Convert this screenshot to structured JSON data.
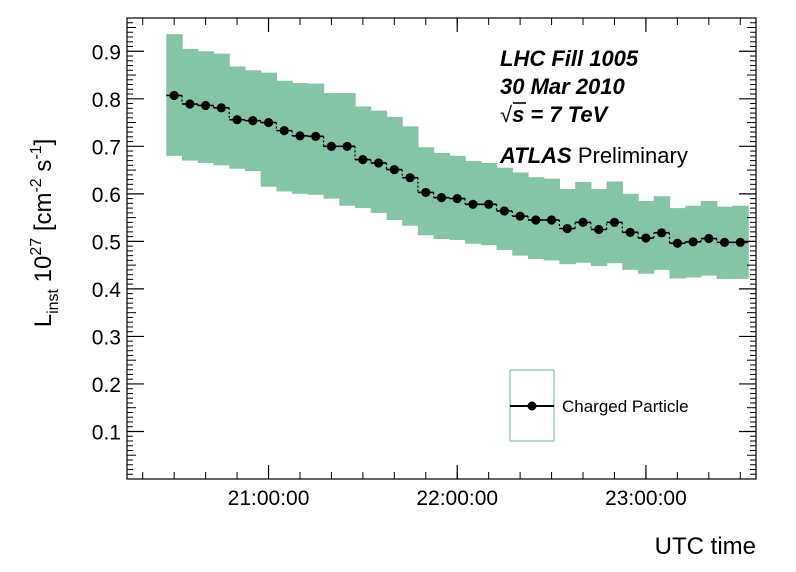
{
  "chart_data": {
    "type": "scatter",
    "xlabel": "UTC time",
    "ylabel_main": "L",
    "ylabel_sub": "inst",
    "ylabel_pow_base": " 10",
    "ylabel_pow_exp": "27",
    "ylabel_units_pre": " [cm",
    "ylabel_units_exp1": "-2",
    "ylabel_units_mid": " s",
    "ylabel_units_exp2": "-1",
    "ylabel_units_post": "]",
    "xlim": [
      "20:15:00",
      "23:35:00"
    ],
    "ylim": [
      0,
      0.97
    ],
    "x_ticks": [
      "21:00:00",
      "22:00:00",
      "23:00:00"
    ],
    "y_ticks": [
      "0.1",
      "0.2",
      "0.3",
      "0.4",
      "0.5",
      "0.6",
      "0.7",
      "0.8",
      "0.9"
    ],
    "y_tick_values": [
      0.1,
      0.2,
      0.3,
      0.4,
      0.5,
      0.6,
      0.7,
      0.8,
      0.9
    ],
    "bin_width_minutes": 5,
    "x": [
      "20:30:00",
      "20:35:00",
      "20:40:00",
      "20:45:00",
      "20:50:00",
      "20:55:00",
      "21:00:00",
      "21:05:00",
      "21:10:00",
      "21:15:00",
      "21:20:00",
      "21:25:00",
      "21:30:00",
      "21:35:00",
      "21:40:00",
      "21:45:00",
      "21:50:00",
      "21:55:00",
      "22:00:00",
      "22:05:00",
      "22:10:00",
      "22:15:00",
      "22:20:00",
      "22:25:00",
      "22:30:00",
      "22:35:00",
      "22:40:00",
      "22:45:00",
      "22:50:00",
      "22:55:00",
      "23:00:00",
      "23:05:00",
      "23:10:00",
      "23:15:00",
      "23:20:00",
      "23:25:00",
      "23:30:00"
    ],
    "series": [
      {
        "name": "Charged Particle",
        "values": [
          0.807,
          0.789,
          0.786,
          0.781,
          0.756,
          0.754,
          0.75,
          0.733,
          0.722,
          0.721,
          0.7,
          0.7,
          0.672,
          0.665,
          0.651,
          0.634,
          0.603,
          0.592,
          0.59,
          0.578,
          0.578,
          0.564,
          0.553,
          0.545,
          0.545,
          0.527,
          0.54,
          0.525,
          0.54,
          0.519,
          0.507,
          0.518,
          0.496,
          0.499,
          0.506,
          0.498,
          0.498
        ],
        "band_low": [
          0.68,
          0.67,
          0.665,
          0.66,
          0.653,
          0.648,
          0.615,
          0.605,
          0.6,
          0.598,
          0.59,
          0.575,
          0.57,
          0.56,
          0.545,
          0.533,
          0.513,
          0.505,
          0.503,
          0.495,
          0.492,
          0.482,
          0.47,
          0.463,
          0.46,
          0.452,
          0.455,
          0.448,
          0.454,
          0.44,
          0.432,
          0.44,
          0.422,
          0.424,
          0.428,
          0.421,
          0.421
        ],
        "band_high": [
          0.936,
          0.905,
          0.9,
          0.895,
          0.868,
          0.86,
          0.855,
          0.838,
          0.833,
          0.832,
          0.812,
          0.812,
          0.784,
          0.775,
          0.762,
          0.742,
          0.698,
          0.686,
          0.68,
          0.669,
          0.665,
          0.655,
          0.645,
          0.635,
          0.632,
          0.61,
          0.625,
          0.61,
          0.626,
          0.6,
          0.585,
          0.595,
          0.57,
          0.575,
          0.585,
          0.573,
          0.575
        ]
      }
    ],
    "annotations": {
      "line1": "LHC Fill 1005",
      "line2": "30 Mar 2010",
      "line3_sqrt": "√",
      "line3_rest": "s = 7 TeV",
      "line4_bold": "ATLAS",
      "line4_plain": " Preliminary"
    },
    "legend_position": "bottom-right",
    "marker_color": "#000000",
    "band_color": "#85c5a6"
  }
}
